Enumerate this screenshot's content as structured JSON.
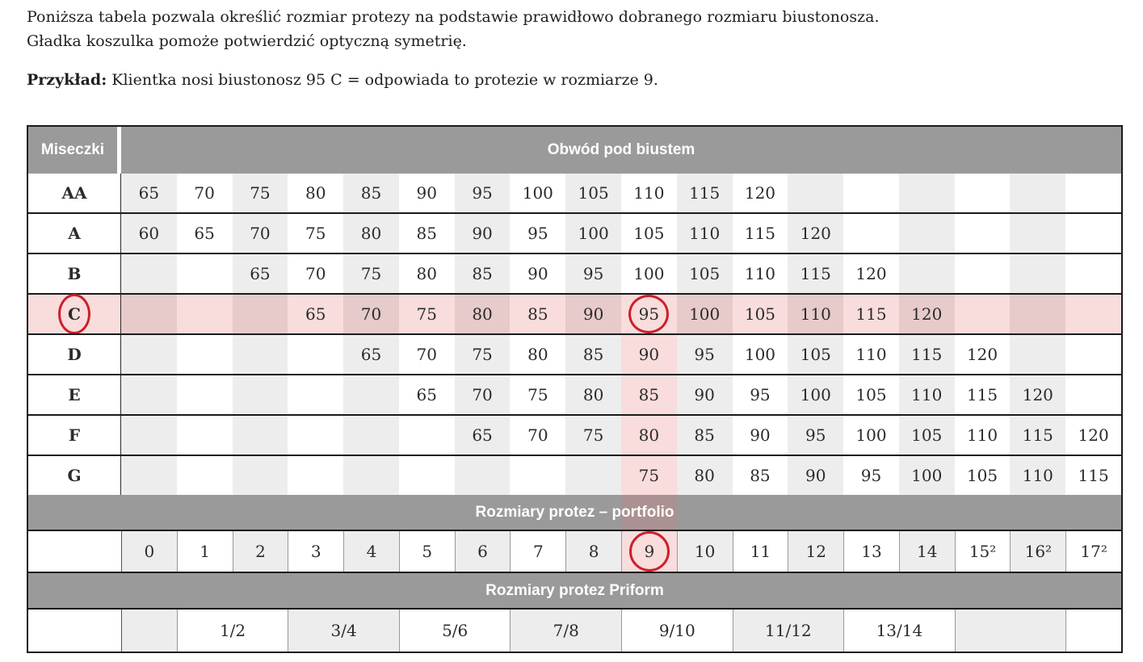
{
  "intro": {
    "line1": "Poniższa tabela pozwala określić rozmiar protezy na podstawie prawidłowo dobranego rozmiaru biustonosza.",
    "line2": "Gładka koszulka pomoże potwierdzić optyczną symetrię.",
    "example_label": "Przykład:",
    "example_text": " Klientka nosi biustonosz 95 C = odpowiada to protezie w rozmiarze 9."
  },
  "table": {
    "corner_header": "Miseczki",
    "band_header": "Obwód pod biustem",
    "portfolio_header": "Rozmiary protez – portfolio",
    "priform_header": "Rozmiary protez Priform",
    "columns": 18,
    "highlighted_column_index": 10,
    "cup_rows": [
      {
        "label": "AA",
        "circled_label": false,
        "highlight": false,
        "banded": false,
        "values": [
          "65",
          "70",
          "75",
          "80",
          "85",
          "90",
          "95",
          "100",
          "105",
          "110",
          "115",
          "120",
          "",
          "",
          "",
          "",
          "",
          ""
        ]
      },
      {
        "label": "A",
        "circled_label": false,
        "highlight": false,
        "banded": false,
        "values": [
          "60",
          "65",
          "70",
          "75",
          "80",
          "85",
          "90",
          "95",
          "100",
          "105",
          "110",
          "115",
          "120",
          "",
          "",
          "",
          "",
          ""
        ]
      },
      {
        "label": "B",
        "circled_label": false,
        "highlight": false,
        "banded": false,
        "values": [
          "",
          "",
          "65",
          "70",
          "75",
          "80",
          "85",
          "90",
          "95",
          "100",
          "105",
          "110",
          "115",
          "120",
          "",
          "",
          "",
          ""
        ]
      },
      {
        "label": "C",
        "circled_label": true,
        "highlight": true,
        "banded": true,
        "circled_value_index": 9,
        "values": [
          "",
          "",
          "",
          "65",
          "70",
          "75",
          "80",
          "85",
          "90",
          "95",
          "100",
          "105",
          "110",
          "115",
          "120",
          "",
          "",
          ""
        ]
      },
      {
        "label": "D",
        "circled_label": false,
        "highlight": false,
        "banded": true,
        "values": [
          "",
          "",
          "",
          "",
          "65",
          "70",
          "75",
          "80",
          "85",
          "90",
          "95",
          "100",
          "105",
          "110",
          "115",
          "120",
          "",
          ""
        ]
      },
      {
        "label": "E",
        "circled_label": false,
        "highlight": false,
        "banded": true,
        "values": [
          "",
          "",
          "",
          "",
          "",
          "65",
          "70",
          "75",
          "80",
          "85",
          "90",
          "95",
          "100",
          "105",
          "110",
          "115",
          "120",
          ""
        ]
      },
      {
        "label": "F",
        "circled_label": false,
        "highlight": false,
        "banded": true,
        "values": [
          "",
          "",
          "",
          "",
          "",
          "",
          "65",
          "70",
          "75",
          "80",
          "85",
          "90",
          "95",
          "100",
          "105",
          "110",
          "115",
          "120"
        ]
      },
      {
        "label": "G",
        "circled_label": false,
        "highlight": false,
        "banded": true,
        "values": [
          "",
          "",
          "",
          "",
          "",
          "",
          "",
          "",
          "",
          "75",
          "80",
          "85",
          "90",
          "95",
          "100",
          "105",
          "110",
          "115"
        ]
      }
    ],
    "portfolio_row": {
      "circled_value_index": 9,
      "values": [
        "0",
        "1",
        "2",
        "3",
        "4",
        "5",
        "6",
        "7",
        "8",
        "9",
        "10",
        "11",
        "12",
        "13",
        "14",
        "15²",
        "16²",
        "17²"
      ]
    },
    "priform_row": {
      "cells": [
        {
          "span": 1,
          "label": ""
        },
        {
          "span": 2,
          "label": "1/2"
        },
        {
          "span": 2,
          "label": "3/4"
        },
        {
          "span": 2,
          "label": "5/6"
        },
        {
          "span": 2,
          "label": "7/8"
        },
        {
          "span": 2,
          "label": "9/10"
        },
        {
          "span": 2,
          "label": "11/12"
        },
        {
          "span": 2,
          "label": "13/14"
        },
        {
          "span": 2,
          "label": ""
        },
        {
          "span": 1,
          "label": ""
        }
      ]
    }
  },
  "colors": {
    "header_gray": "#9a9a9a",
    "column_gray": "#ededed",
    "highlight_pink": "#f9dcdc",
    "highlight_pink_on_gray": "#e7caca",
    "highlight_pink_on_header": "#ab9192",
    "annotation_red": "#cd1f2c",
    "border_dark": "#1a1a1a",
    "text": "#2b2b2b"
  }
}
